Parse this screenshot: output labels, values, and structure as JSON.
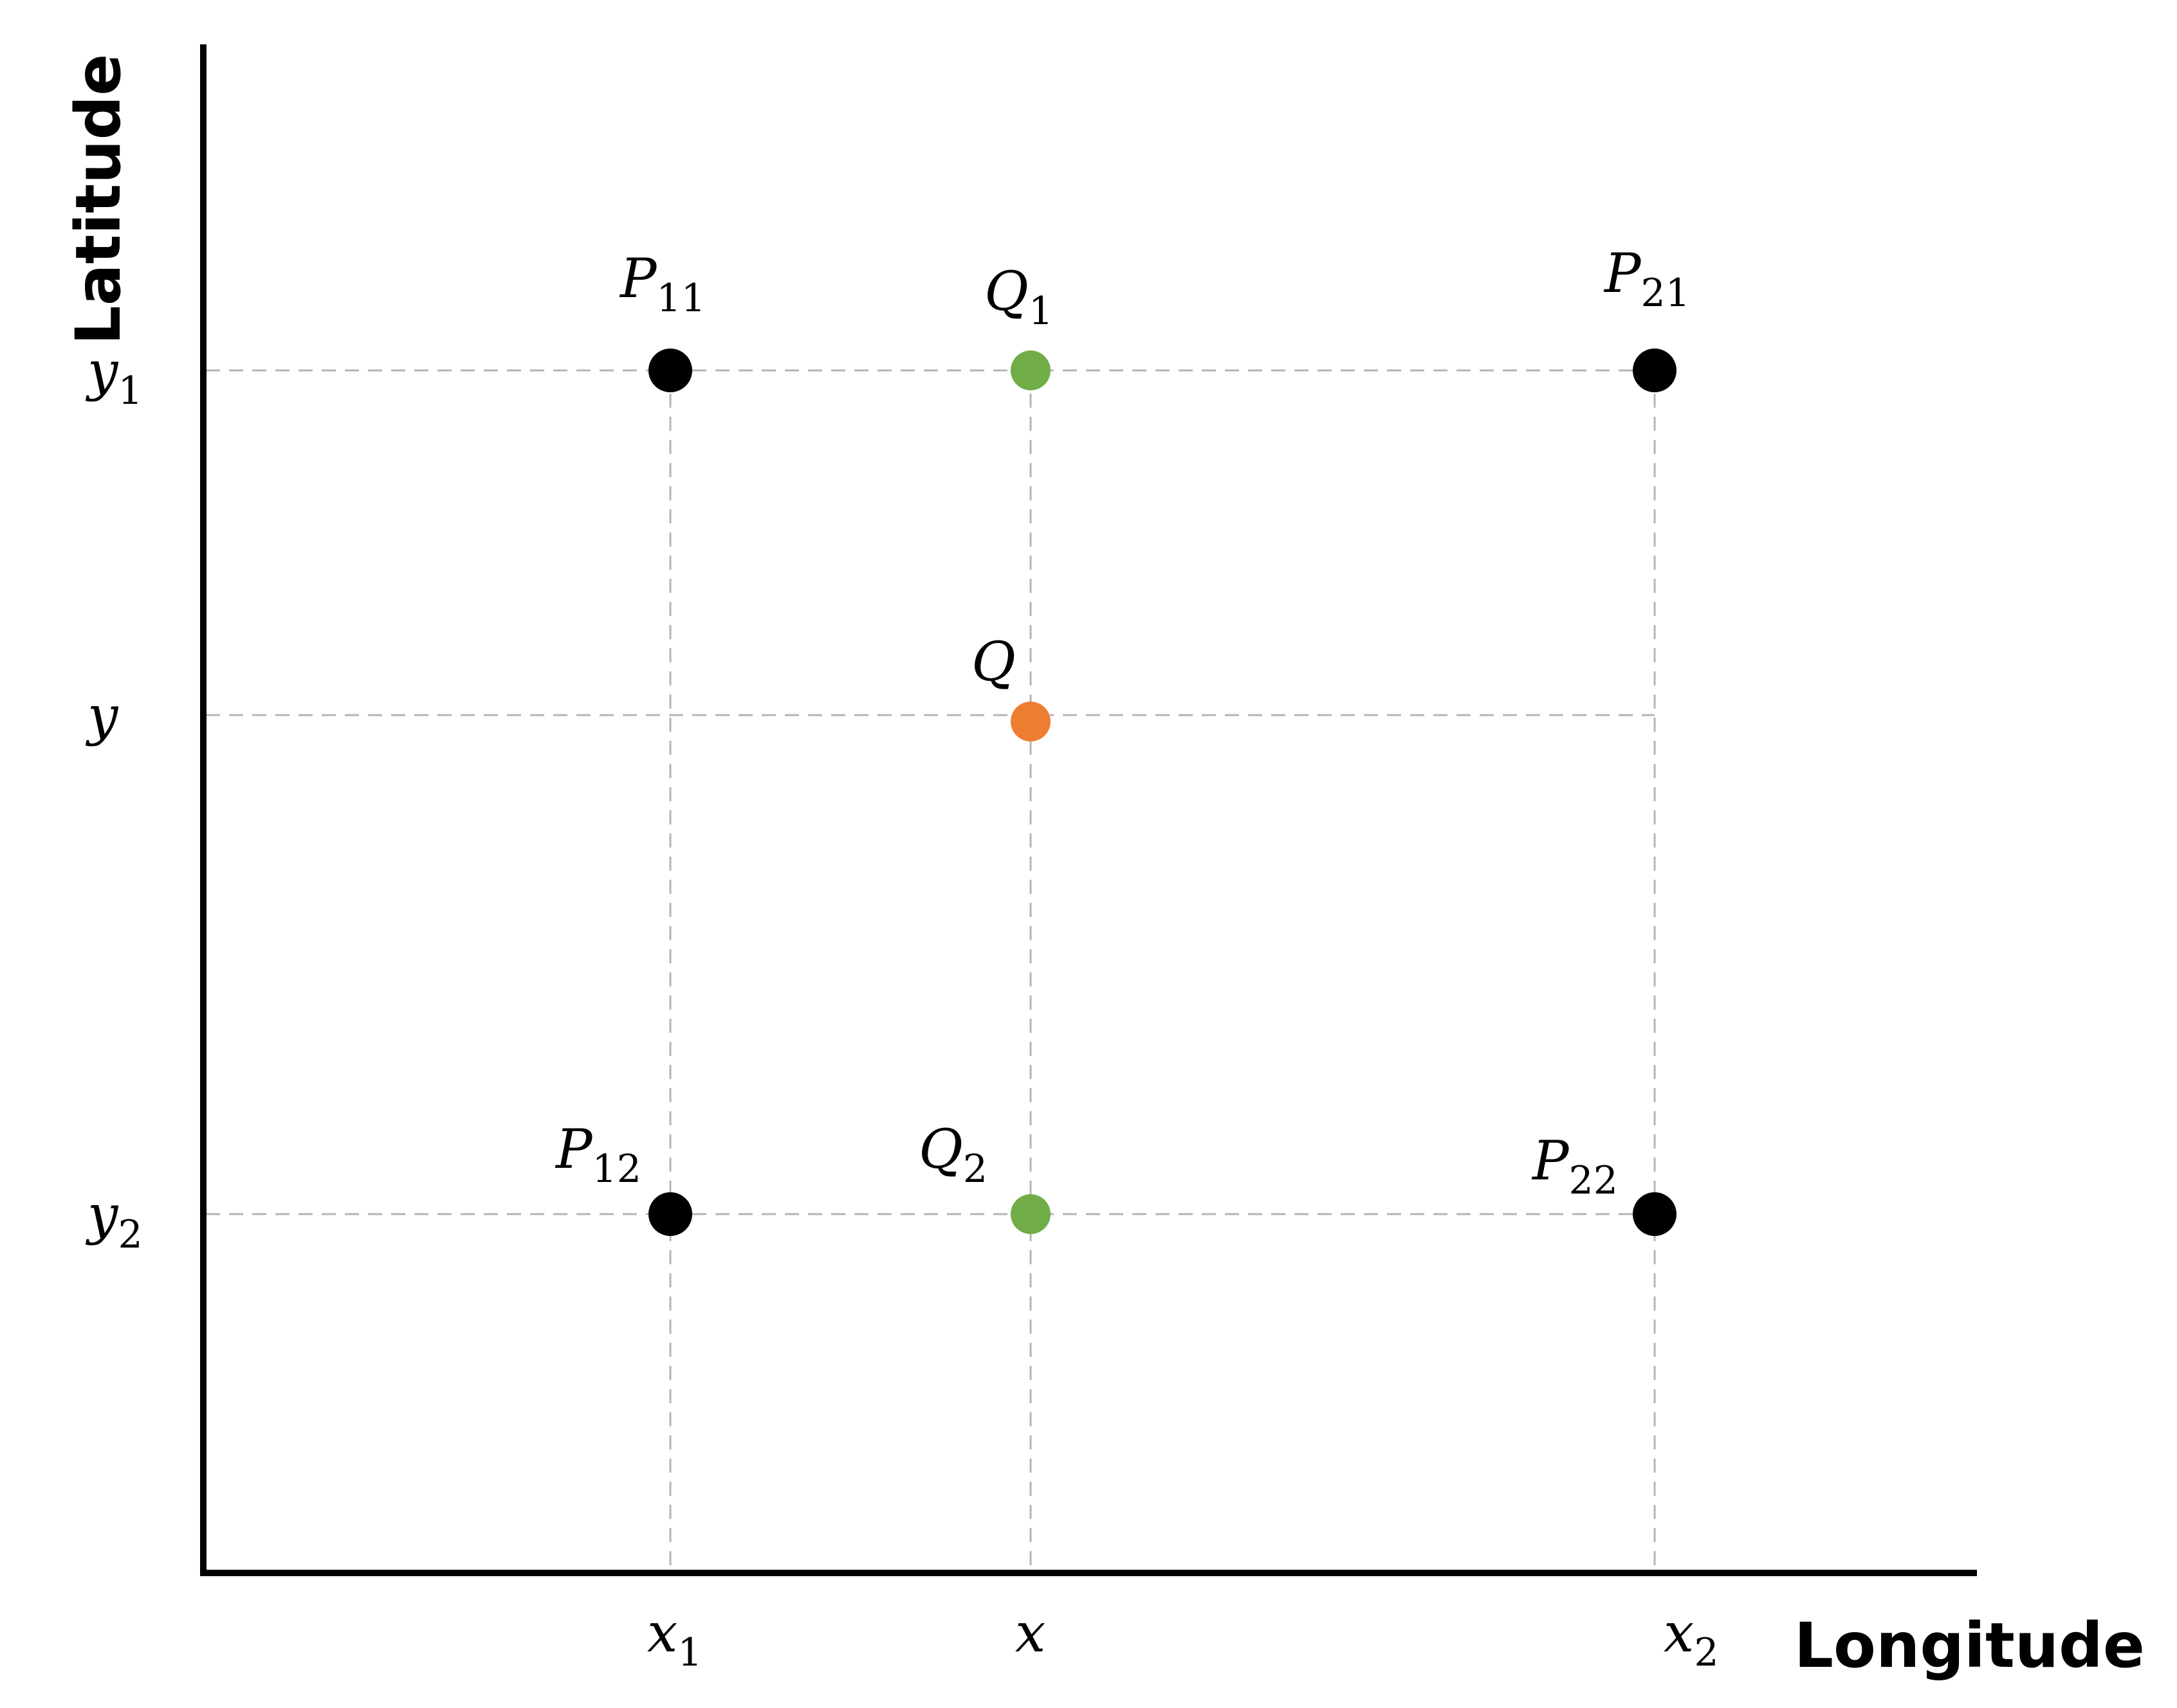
{
  "axes": {
    "x_title": "Longitude",
    "y_title": "Latitude"
  },
  "x_ticks": [
    {
      "base": "x",
      "sub": "1"
    },
    {
      "base": "x",
      "sub": ""
    },
    {
      "base": "x",
      "sub": "2"
    }
  ],
  "y_ticks": [
    {
      "base": "y",
      "sub": "1"
    },
    {
      "base": "y",
      "sub": ""
    },
    {
      "base": "y",
      "sub": "2"
    }
  ],
  "points": [
    {
      "id": "p11",
      "base": "P",
      "sub": "11",
      "role": "corner",
      "color": "#000000"
    },
    {
      "id": "q1",
      "base": "Q",
      "sub": "1",
      "role": "intermediate",
      "color": "#70ad47"
    },
    {
      "id": "p21",
      "base": "P",
      "sub": "21",
      "role": "corner",
      "color": "#000000"
    },
    {
      "id": "q",
      "base": "Q",
      "sub": "",
      "role": "target",
      "color": "#ed7d31"
    },
    {
      "id": "p12",
      "base": "P",
      "sub": "12",
      "role": "corner",
      "color": "#000000"
    },
    {
      "id": "q2",
      "base": "Q",
      "sub": "2",
      "role": "intermediate",
      "color": "#70ad47"
    },
    {
      "id": "p22",
      "base": "P",
      "sub": "22",
      "role": "corner",
      "color": "#000000"
    }
  ]
}
